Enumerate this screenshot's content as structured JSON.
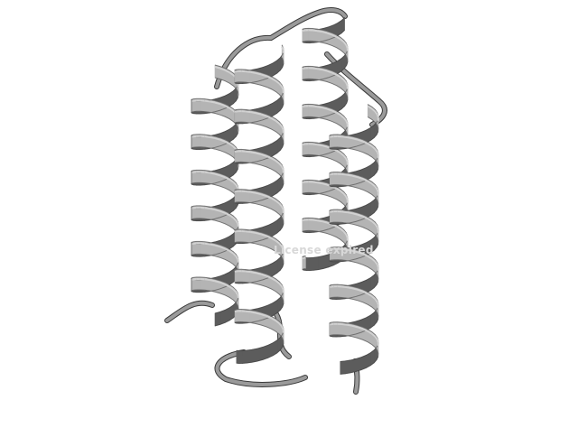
{
  "scene": {
    "subject": "protein-helix-bundle",
    "render_style": "cartoon",
    "background": "#ffffff",
    "colors": {
      "ribbon_face": "#b4b4b4",
      "ribbon_light": "#d2d2d2",
      "ribbon_dark": "#5c5c5c",
      "ribbon_edge": "#3a3a3a",
      "loop": "#9a9a9a"
    }
  },
  "watermark": {
    "text": "License expired"
  }
}
